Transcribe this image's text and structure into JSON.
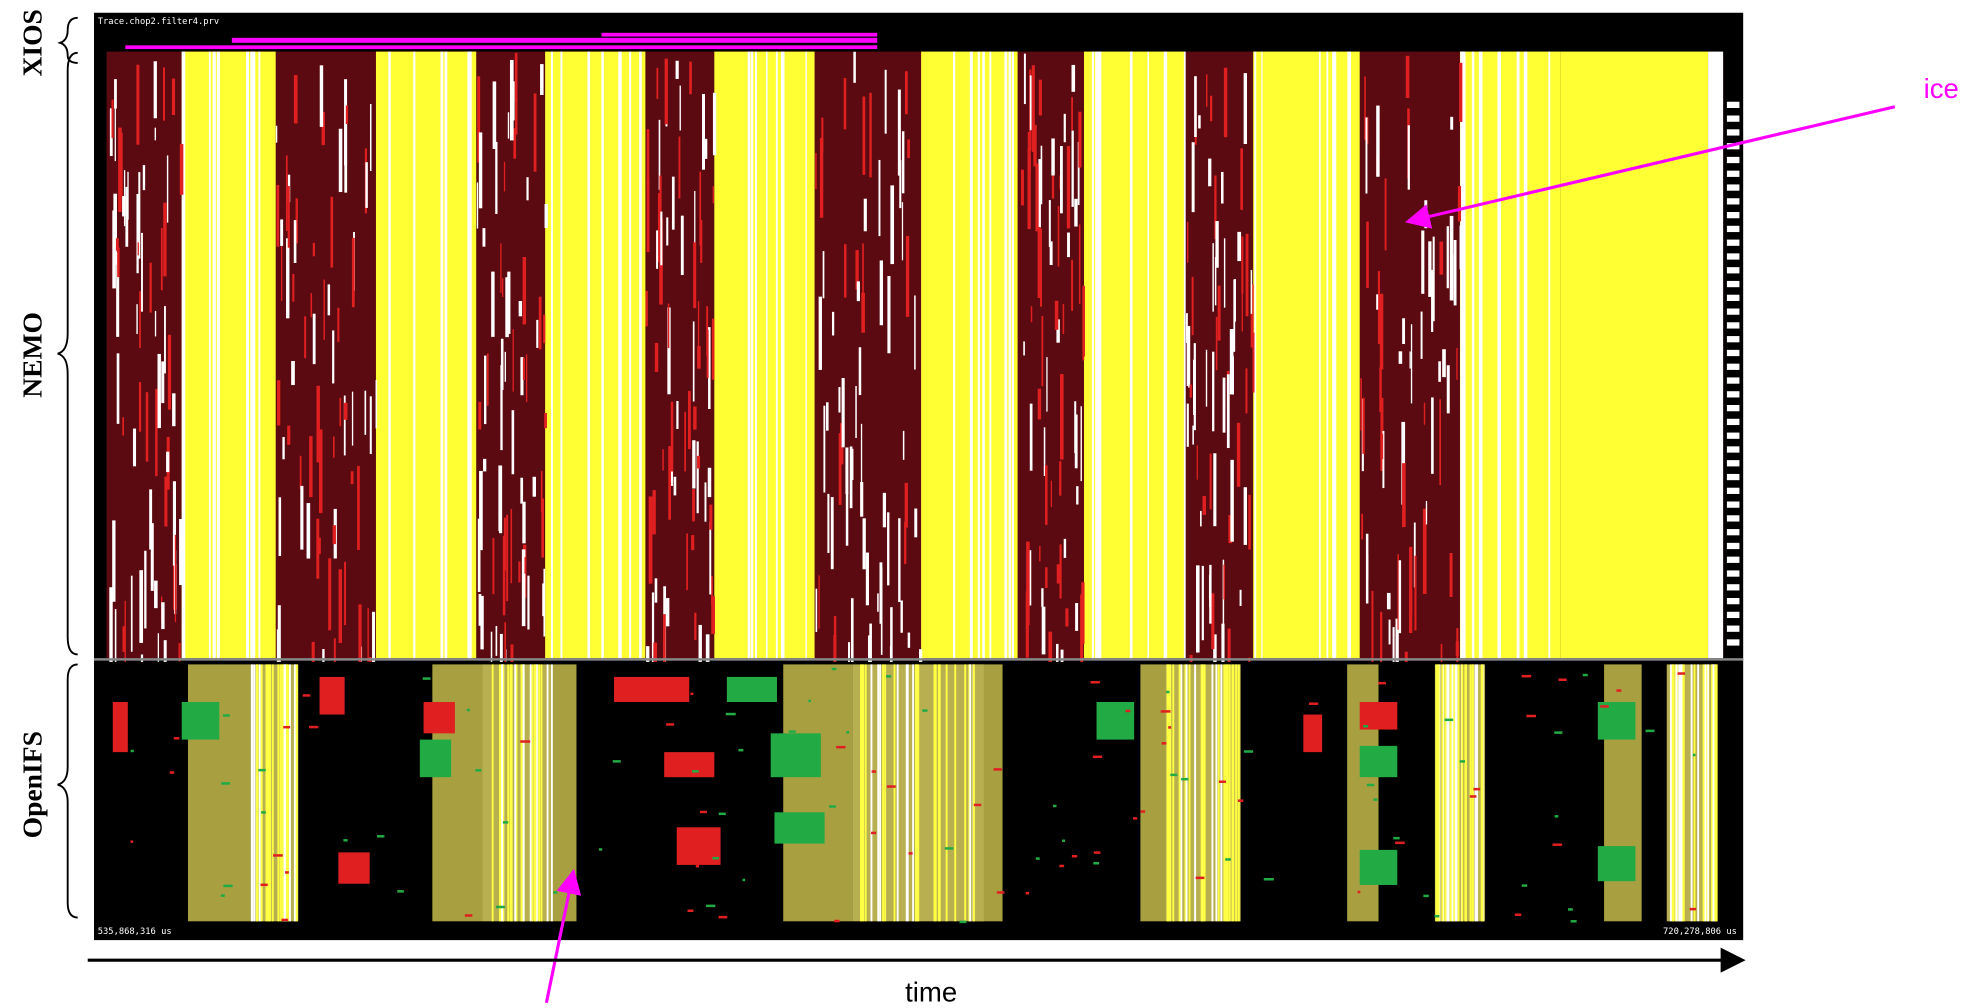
{
  "window": {
    "title": "Trace.chop2.filter4.prv",
    "start_time": "535,868,316 us",
    "end_time": "720,278,806 us"
  },
  "labels": {
    "xios": "XIOS",
    "nemo": "NEMO",
    "openifs": "OpenIFS"
  },
  "annotations": {
    "ice": "ice",
    "time": "time"
  }
}
